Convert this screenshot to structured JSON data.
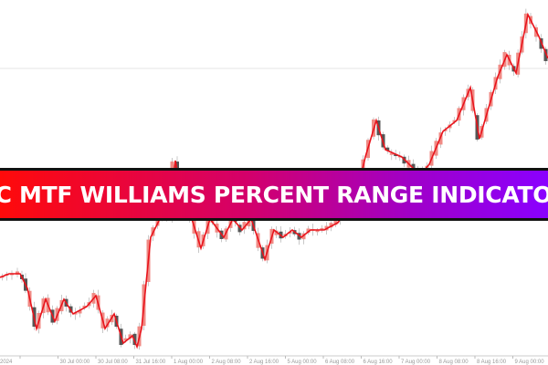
{
  "banner": {
    "title": "SC MTF WILLIAMS PERCENT RANGE INDICATOR"
  },
  "colors": {
    "line": "#e8141c",
    "bull_candle": "#f08a84",
    "bear_candle": "#555555",
    "banner_start": "#ff0a0a",
    "banner_end": "#8a00ff",
    "border": "#111111"
  },
  "chart_data": {
    "type": "line",
    "overlay": "candlestick",
    "grid": false,
    "x_tick_labels": [
      "2024",
      "30 Jul 00:00",
      "30 Jul 08:00",
      "31 Jul 16:00",
      "1 Aug 00:00",
      "2 Aug 08:00",
      "2 Aug 16:00",
      "5 Aug 00:00",
      "6 Aug 08:00",
      "6 Aug 16:00",
      "7 Aug 00:00",
      "8 Aug 08:00",
      "8 Aug 16:00",
      "9 Aug 00:00"
    ],
    "series": [
      {
        "values": [
          24,
          25,
          25,
          21,
          10,
          18,
          12,
          18,
          14,
          16,
          19,
          10,
          14,
          6,
          8,
          5,
          10,
          35,
          40,
          41,
          56,
          45,
          40,
          32,
          40,
          35,
          40,
          37,
          40,
          29,
          37,
          35,
          37,
          35,
          37,
          37,
          39,
          46,
          57,
          67,
          59,
          57,
          52,
          55,
          64,
          67,
          76,
          62,
          79,
          85,
          80,
          96,
          90,
          84
        ]
      }
    ]
  }
}
